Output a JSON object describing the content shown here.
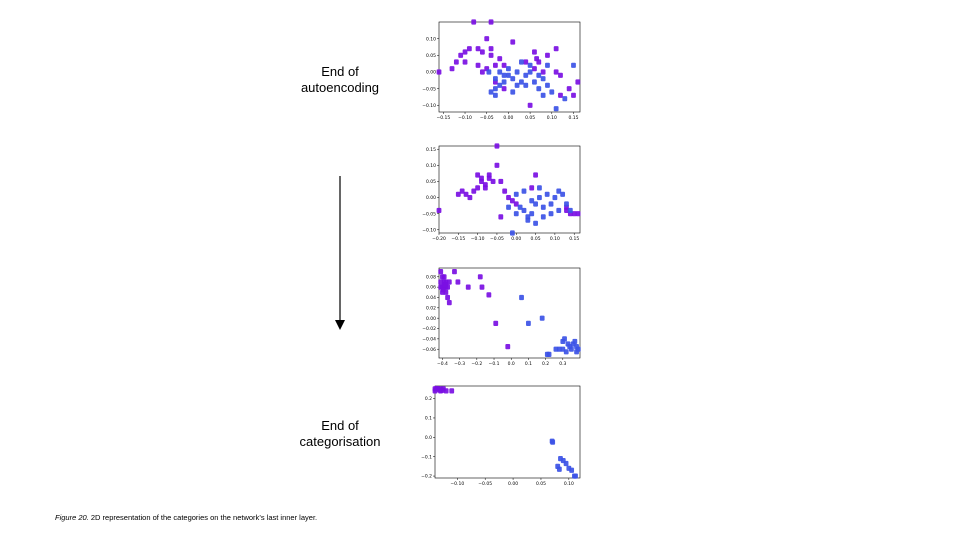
{
  "labels": {
    "top": [
      "End of",
      "autoencoding"
    ],
    "bottom": [
      "End of",
      "categorisation"
    ]
  },
  "caption": {
    "figure": "Figure 20.",
    "text": " 2D representation of the categories on the network’s last inner layer."
  },
  "colors": {
    "cat_a": "#7a0fe3",
    "cat_b": "#3c52e6"
  },
  "chart_data": [
    {
      "type": "scatter",
      "xlim": [
        -0.16,
        0.165
      ],
      "ylim": [
        -0.12,
        0.15
      ],
      "xticks": [
        -0.15,
        -0.1,
        -0.05,
        0.0,
        0.05,
        0.1,
        0.15
      ],
      "xtick_labels": [
        "−0.15",
        "−0.10",
        "−0.05",
        "0.00",
        "0.05",
        "0.10",
        "0.15"
      ],
      "yticks": [
        -0.1,
        -0.05,
        0.0,
        0.05,
        0.1
      ],
      "ytick_labels": [
        "−0.10",
        "−0.05",
        "0.00",
        "0.05",
        "0.10"
      ],
      "series": [
        {
          "color": "#7a0fe3",
          "points": [
            [
              -0.08,
              0.15
            ],
            [
              -0.04,
              0.15
            ],
            [
              -0.13,
              0.01
            ],
            [
              -0.16,
              0.0
            ],
            [
              -0.12,
              0.03
            ],
            [
              -0.1,
              0.03
            ],
            [
              -0.11,
              0.05
            ],
            [
              -0.09,
              0.07
            ],
            [
              -0.1,
              0.06
            ],
            [
              -0.07,
              0.07
            ],
            [
              -0.06,
              0.06
            ],
            [
              -0.05,
              0.1
            ],
            [
              -0.04,
              0.07
            ],
            [
              -0.04,
              0.05
            ],
            [
              -0.07,
              0.02
            ],
            [
              -0.05,
              0.01
            ],
            [
              -0.03,
              0.02
            ],
            [
              -0.01,
              0.02
            ],
            [
              0.01,
              0.09
            ],
            [
              0.06,
              0.06
            ],
            [
              0.07,
              0.03
            ],
            [
              0.06,
              0.01
            ],
            [
              0.08,
              0.0
            ],
            [
              0.11,
              0.0
            ],
            [
              0.12,
              -0.01
            ],
            [
              0.16,
              -0.03
            ],
            [
              0.14,
              -0.05
            ],
            [
              0.15,
              -0.07
            ],
            [
              0.12,
              -0.07
            ],
            [
              0.05,
              -0.1
            ],
            [
              -0.01,
              -0.05
            ],
            [
              -0.03,
              -0.03
            ],
            [
              0.09,
              0.05
            ],
            [
              0.11,
              0.07
            ],
            [
              0.04,
              0.03
            ],
            [
              -0.02,
              0.04
            ],
            [
              0.065,
              0.04
            ],
            [
              -0.06,
              0.0
            ]
          ]
        },
        {
          "color": "#3c52e6",
          "points": [
            [
              -0.03,
              -0.02
            ],
            [
              -0.02,
              -0.04
            ],
            [
              -0.01,
              -0.03
            ],
            [
              0.0,
              -0.01
            ],
            [
              0.01,
              -0.02
            ],
            [
              0.02,
              -0.04
            ],
            [
              0.03,
              -0.03
            ],
            [
              0.04,
              -0.01
            ],
            [
              0.05,
              0.0
            ],
            [
              0.06,
              -0.03
            ],
            [
              0.07,
              -0.05
            ],
            [
              0.08,
              -0.02
            ],
            [
              0.09,
              -0.04
            ],
            [
              0.1,
              -0.06
            ],
            [
              0.11,
              -0.11
            ],
            [
              0.15,
              0.02
            ],
            [
              0.13,
              -0.08
            ],
            [
              -0.04,
              -0.06
            ],
            [
              -0.03,
              -0.07
            ],
            [
              -0.02,
              0.0
            ],
            [
              0.0,
              0.01
            ],
            [
              0.02,
              0.0
            ],
            [
              0.03,
              0.03
            ],
            [
              0.05,
              0.02
            ],
            [
              0.07,
              -0.01
            ],
            [
              0.08,
              -0.07
            ],
            [
              -0.01,
              -0.01
            ],
            [
              0.01,
              -0.06
            ],
            [
              0.04,
              -0.04
            ],
            [
              -0.03,
              -0.05
            ],
            [
              -0.045,
              0.0
            ],
            [
              0.09,
              0.02
            ]
          ]
        }
      ]
    },
    {
      "type": "scatter",
      "xlim": [
        -0.2,
        0.165
      ],
      "ylim": [
        -0.11,
        0.16
      ],
      "xticks": [
        -0.2,
        -0.15,
        -0.1,
        -0.05,
        0.0,
        0.05,
        0.1,
        0.15
      ],
      "xtick_labels": [
        "−0.20",
        "−0.15",
        "−0.10",
        "−0.05",
        "0.00",
        "0.05",
        "0.10",
        "0.15"
      ],
      "yticks": [
        -0.1,
        -0.05,
        0.0,
        0.05,
        0.1,
        0.15
      ],
      "ytick_labels": [
        "−0.10",
        "−0.05",
        "0.00",
        "0.05",
        "0.10",
        "0.15"
      ],
      "series": [
        {
          "color": "#7a0fe3",
          "points": [
            [
              -0.05,
              0.16
            ],
            [
              -0.2,
              -0.04
            ],
            [
              -0.15,
              0.01
            ],
            [
              -0.14,
              0.02
            ],
            [
              -0.13,
              0.01
            ],
            [
              -0.12,
              0.0
            ],
            [
              -0.11,
              0.02
            ],
            [
              -0.1,
              0.07
            ],
            [
              -0.09,
              0.06
            ],
            [
              -0.09,
              0.05
            ],
            [
              -0.08,
              0.04
            ],
            [
              -0.07,
              0.07
            ],
            [
              -0.06,
              0.05
            ],
            [
              -0.05,
              0.1
            ],
            [
              -0.04,
              0.05
            ],
            [
              -0.03,
              0.02
            ],
            [
              -0.02,
              0.0
            ],
            [
              -0.01,
              -0.01
            ],
            [
              -0.04,
              -0.06
            ],
            [
              -0.07,
              0.06
            ],
            [
              0.05,
              0.07
            ],
            [
              0.04,
              0.03
            ],
            [
              0.13,
              -0.03
            ],
            [
              0.14,
              -0.05
            ],
            [
              0.15,
              -0.05
            ],
            [
              0.16,
              -0.05
            ],
            [
              0.13,
              -0.04
            ],
            [
              -0.08,
              0.03
            ],
            [
              -0.1,
              0.03
            ],
            [
              0.0,
              -0.02
            ]
          ]
        },
        {
          "color": "#3c52e6",
          "points": [
            [
              -0.01,
              -0.11
            ],
            [
              0.0,
              -0.05
            ],
            [
              0.01,
              -0.03
            ],
            [
              0.02,
              -0.04
            ],
            [
              0.03,
              -0.06
            ],
            [
              0.04,
              -0.01
            ],
            [
              0.05,
              -0.02
            ],
            [
              0.06,
              0.0
            ],
            [
              0.07,
              -0.03
            ],
            [
              0.08,
              0.01
            ],
            [
              0.09,
              -0.02
            ],
            [
              0.1,
              0.0
            ],
            [
              0.11,
              -0.04
            ],
            [
              0.12,
              0.01
            ],
            [
              0.13,
              -0.02
            ],
            [
              0.03,
              -0.07
            ],
            [
              0.05,
              -0.08
            ],
            [
              0.07,
              -0.06
            ],
            [
              0.02,
              0.02
            ],
            [
              0.0,
              0.01
            ],
            [
              -0.02,
              -0.03
            ],
            [
              0.04,
              -0.05
            ],
            [
              0.06,
              0.03
            ],
            [
              0.09,
              -0.05
            ],
            [
              0.11,
              0.02
            ],
            [
              0.14,
              -0.04
            ]
          ]
        }
      ]
    },
    {
      "type": "scatter",
      "xlim": [
        -0.42,
        0.4
      ],
      "ylim": [
        -0.077,
        0.097
      ],
      "xticks": [
        -0.4,
        -0.3,
        -0.2,
        -0.1,
        0.0,
        0.1,
        0.2,
        0.3
      ],
      "xtick_labels": [
        "−0.4",
        "−0.3",
        "−0.2",
        "−0.1",
        "0.0",
        "0.1",
        "0.2",
        "0.3"
      ],
      "yticks": [
        -0.06,
        -0.04,
        -0.02,
        0.0,
        0.02,
        0.04,
        0.06,
        0.08
      ],
      "ytick_labels": [
        "−0.06",
        "−0.04",
        "−0.02",
        "0.00",
        "0.02",
        "0.04",
        "0.06",
        "0.08"
      ],
      "series": [
        {
          "color": "#7a0fe3",
          "points": [
            [
              -0.41,
              0.09
            ],
            [
              -0.4,
              0.08
            ],
            [
              -0.39,
              0.07
            ],
            [
              -0.41,
              0.07
            ],
            [
              -0.4,
              0.06
            ],
            [
              -0.39,
              0.06
            ],
            [
              -0.38,
              0.06
            ],
            [
              -0.37,
              0.06
            ],
            [
              -0.38,
              0.05
            ],
            [
              -0.4,
              0.05
            ],
            [
              -0.36,
              0.07
            ],
            [
              -0.39,
              0.08
            ],
            [
              -0.37,
              0.04
            ],
            [
              -0.36,
              0.03
            ],
            [
              -0.33,
              0.09
            ],
            [
              -0.31,
              0.07
            ],
            [
              -0.25,
              0.06
            ],
            [
              -0.18,
              0.08
            ],
            [
              -0.17,
              0.06
            ],
            [
              -0.13,
              0.045
            ],
            [
              -0.09,
              -0.01
            ],
            [
              -0.02,
              -0.055
            ],
            [
              -0.41,
              0.06
            ],
            [
              -0.38,
              0.07
            ],
            [
              -0.385,
              0.065
            ],
            [
              -0.395,
              0.055
            ]
          ]
        },
        {
          "color": "#3c52e6",
          "points": [
            [
              0.06,
              0.04
            ],
            [
              0.1,
              -0.01
            ],
            [
              0.18,
              0.0
            ],
            [
              0.22,
              -0.07
            ],
            [
              0.21,
              -0.07
            ],
            [
              0.26,
              -0.06
            ],
            [
              0.28,
              -0.06
            ],
            [
              0.3,
              -0.045
            ],
            [
              0.31,
              -0.04
            ],
            [
              0.33,
              -0.05
            ],
            [
              0.34,
              -0.055
            ],
            [
              0.35,
              -0.06
            ],
            [
              0.36,
              -0.05
            ],
            [
              0.38,
              -0.055
            ],
            [
              0.39,
              -0.06
            ],
            [
              0.37,
              -0.045
            ],
            [
              0.32,
              -0.065
            ],
            [
              0.3,
              -0.06
            ],
            [
              0.38,
              -0.065
            ]
          ]
        }
      ]
    },
    {
      "type": "scatter",
      "xlim": [
        -0.14,
        0.12
      ],
      "ylim": [
        -0.21,
        0.265
      ],
      "xticks": [
        -0.1,
        -0.05,
        0.0,
        0.05,
        0.1
      ],
      "xtick_labels": [
        "−0.10",
        "−0.05",
        "0.00",
        "0.05",
        "0.10"
      ],
      "yticks": [
        -0.2,
        -0.1,
        0.0,
        0.1,
        0.2
      ],
      "ytick_labels": [
        "−0.2",
        "−0.1",
        "0.0",
        "0.1",
        "0.2"
      ],
      "series": [
        {
          "color": "#7a0fe3",
          "points": [
            [
              -0.14,
              0.25
            ],
            [
              -0.135,
              0.25
            ],
            [
              -0.13,
              0.24
            ],
            [
              -0.13,
              0.25
            ],
            [
              -0.125,
              0.25
            ],
            [
              -0.14,
              0.24
            ],
            [
              -0.132,
              0.245
            ],
            [
              -0.12,
              0.24
            ],
            [
              -0.11,
              0.24
            ],
            [
              -0.137,
              0.252
            ],
            [
              -0.127,
              0.243
            ]
          ]
        },
        {
          "color": "#3c52e6",
          "points": [
            [
              0.07,
              -0.02
            ],
            [
              0.071,
              -0.025
            ],
            [
              0.08,
              -0.15
            ],
            [
              0.085,
              -0.11
            ],
            [
              0.09,
              -0.12
            ],
            [
              0.095,
              -0.135
            ],
            [
              0.1,
              -0.16
            ],
            [
              0.105,
              -0.17
            ],
            [
              0.11,
              -0.2
            ],
            [
              0.112,
              -0.2
            ],
            [
              0.083,
              -0.165
            ]
          ]
        }
      ]
    }
  ]
}
